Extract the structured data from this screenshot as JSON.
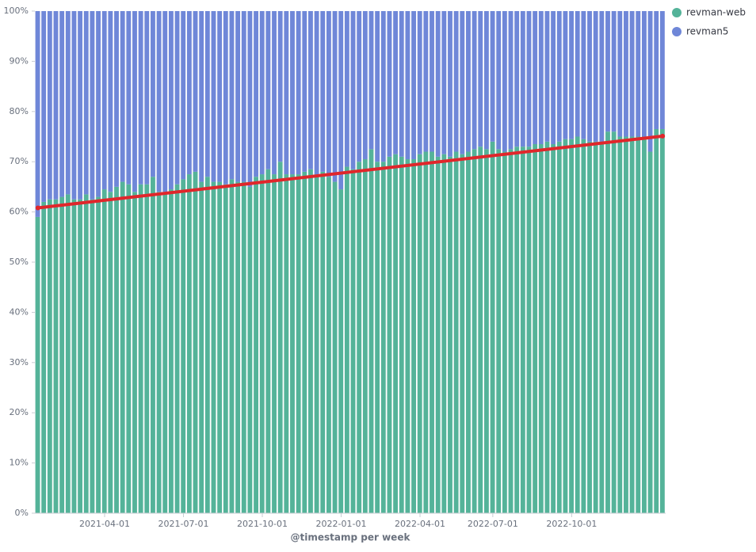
{
  "chart_data": {
    "type": "stacked_percent_bar",
    "x_label": "@timestamp per week",
    "categories": [
      null,
      null,
      null,
      null,
      null,
      null,
      null,
      null,
      null,
      null,
      null,
      "2021-04-01",
      null,
      null,
      null,
      null,
      null,
      null,
      null,
      null,
      null,
      null,
      null,
      null,
      "2021-07-01",
      null,
      null,
      null,
      null,
      null,
      null,
      null,
      null,
      null,
      null,
      null,
      null,
      "2021-10-01",
      null,
      null,
      null,
      null,
      null,
      null,
      null,
      null,
      null,
      null,
      null,
      null,
      "2022-01-01",
      null,
      null,
      null,
      null,
      null,
      null,
      null,
      null,
      null,
      null,
      null,
      null,
      "2022-04-01",
      null,
      null,
      null,
      null,
      null,
      null,
      null,
      null,
      null,
      null,
      null,
      "2022-07-01",
      null,
      null,
      null,
      null,
      null,
      null,
      null,
      null,
      null,
      null,
      null,
      null,
      "2022-10-01",
      null,
      null,
      null,
      null,
      null,
      null,
      null,
      null,
      null,
      null,
      null,
      null,
      null,
      null,
      null
    ],
    "series": [
      {
        "name": "revman-web",
        "color": "#54b399",
        "values": [
          59,
          62,
          62.5,
          62.5,
          63,
          63.5,
          62.5,
          62.5,
          63.5,
          62.5,
          63,
          64.5,
          64,
          65,
          66,
          65.5,
          64,
          65.5,
          65.5,
          67,
          64,
          64,
          64.5,
          65.5,
          66.5,
          67.5,
          68,
          66,
          67,
          66,
          66,
          65.5,
          66.5,
          66,
          66,
          65,
          67,
          67.5,
          68.5,
          67.5,
          70,
          67.5,
          67.5,
          67.5,
          68,
          68.5,
          67.5,
          68,
          67,
          66,
          64.5,
          69,
          68.5,
          70,
          70.5,
          72.5,
          70,
          70,
          71,
          71.5,
          71,
          70.5,
          70.5,
          71.5,
          72,
          72,
          71,
          71.5,
          71,
          72,
          71.5,
          72,
          72.5,
          73,
          72.5,
          74,
          72.5,
          72,
          72.5,
          73,
          73,
          73,
          73.5,
          73.5,
          74,
          73.5,
          74,
          74.5,
          74.5,
          75,
          74.5,
          74,
          74,
          74,
          76,
          76,
          75,
          75,
          75,
          75,
          75,
          72,
          76.5,
          76.5
        ]
      },
      {
        "name": "revman5",
        "color": "#6f87d8",
        "values": [
          41,
          38,
          37.5,
          37.5,
          37,
          36.5,
          37.5,
          37.5,
          36.5,
          37.5,
          37,
          35.5,
          36,
          35,
          34,
          34.5,
          36,
          34.5,
          34.5,
          33,
          36,
          36,
          35.5,
          34.5,
          33.5,
          32.5,
          32,
          34,
          33,
          34,
          34,
          34.5,
          33.5,
          34,
          34,
          35,
          33,
          32.5,
          31.5,
          32.5,
          30,
          32.5,
          32.5,
          32.5,
          32,
          31.5,
          32.5,
          32,
          33,
          34,
          35.5,
          31,
          31.5,
          30,
          29.5,
          27.5,
          30,
          30,
          29,
          28.5,
          29,
          29.5,
          29.5,
          28.5,
          28,
          28,
          29,
          28.5,
          29,
          28,
          28.5,
          28,
          27.5,
          27,
          27.5,
          26,
          27.5,
          28,
          27.5,
          27,
          27,
          27,
          26.5,
          26.5,
          26,
          26.5,
          26,
          25.5,
          25.5,
          25,
          25.5,
          26,
          26,
          26,
          24,
          24,
          25,
          25,
          25,
          25,
          25,
          28,
          23.5,
          23.5
        ]
      }
    ],
    "trend": {
      "color": "#e0262b",
      "values": [
        60.8,
        75.1
      ]
    },
    "ylim": [
      0,
      100
    ],
    "yticks": [
      {
        "value": 0,
        "label": "0%"
      },
      {
        "value": 10,
        "label": "10%"
      },
      {
        "value": 20,
        "label": "20%"
      },
      {
        "value": 30,
        "label": "30%"
      },
      {
        "value": 40,
        "label": "40%"
      },
      {
        "value": 50,
        "label": "50%"
      },
      {
        "value": 60,
        "label": "60%"
      },
      {
        "value": 70,
        "label": "70%"
      },
      {
        "value": 80,
        "label": "80%"
      },
      {
        "value": 90,
        "label": "90%"
      },
      {
        "value": 100,
        "label": "100%"
      }
    ],
    "legend": "top-right"
  }
}
